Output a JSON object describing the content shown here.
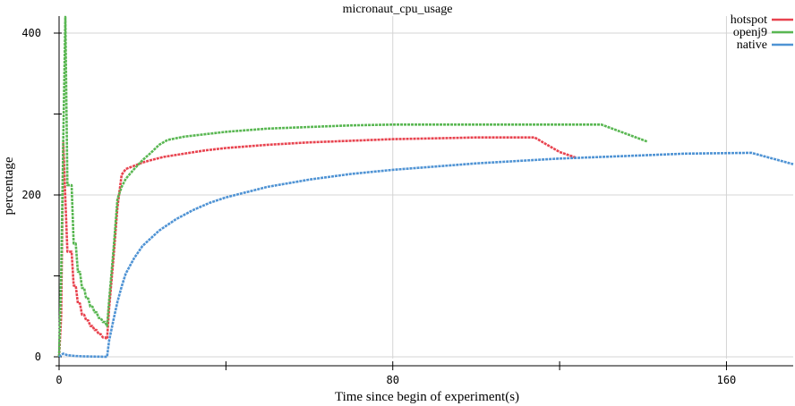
{
  "chart_data": {
    "type": "line",
    "title": "micronaut_cpu_usage",
    "xlabel": "Time since begin of experiment(s)",
    "ylabel": "percentage",
    "xlim": [
      0,
      176
    ],
    "ylim": [
      0,
      420
    ],
    "x_ticks": [
      0,
      80,
      160
    ],
    "y_ticks": [
      0,
      200,
      400
    ],
    "grid": true,
    "legend_position": "top-right",
    "series": [
      {
        "name": "hotspot",
        "color": "#e8434f",
        "points": [
          [
            0,
            0
          ],
          [
            0.5,
            50
          ],
          [
            1,
            265
          ],
          [
            1.5,
            195
          ],
          [
            2,
            130
          ],
          [
            2.5,
            130
          ],
          [
            3,
            130
          ],
          [
            3.5,
            88
          ],
          [
            4,
            88
          ],
          [
            4.5,
            66
          ],
          [
            5,
            66
          ],
          [
            5.5,
            52
          ],
          [
            6,
            52
          ],
          [
            6.5,
            45
          ],
          [
            7,
            45
          ],
          [
            7.5,
            38
          ],
          [
            8,
            38
          ],
          [
            8.5,
            33
          ],
          [
            9,
            33
          ],
          [
            9.5,
            28
          ],
          [
            10,
            28
          ],
          [
            10.5,
            24
          ],
          [
            11,
            24
          ],
          [
            11.5,
            22
          ],
          [
            12,
            60
          ],
          [
            13,
            120
          ],
          [
            14,
            185
          ],
          [
            15,
            225
          ],
          [
            16,
            232
          ],
          [
            18,
            236
          ],
          [
            20,
            240
          ],
          [
            22,
            243
          ],
          [
            25,
            247
          ],
          [
            30,
            251
          ],
          [
            35,
            255
          ],
          [
            40,
            258
          ],
          [
            50,
            262
          ],
          [
            60,
            265
          ],
          [
            70,
            267
          ],
          [
            80,
            269
          ],
          [
            90,
            270
          ],
          [
            100,
            271
          ],
          [
            114,
            271
          ],
          [
            120,
            253
          ],
          [
            124,
            246
          ]
        ]
      },
      {
        "name": "openj9",
        "color": "#59b752",
        "points": [
          [
            0,
            0
          ],
          [
            0.5,
            100
          ],
          [
            1,
            270
          ],
          [
            1.5,
            420
          ],
          [
            2,
            212
          ],
          [
            2.5,
            212
          ],
          [
            3,
            212
          ],
          [
            3.5,
            140
          ],
          [
            4,
            140
          ],
          [
            4.5,
            105
          ],
          [
            5,
            105
          ],
          [
            5.5,
            85
          ],
          [
            6,
            85
          ],
          [
            6.5,
            72
          ],
          [
            7,
            72
          ],
          [
            7.5,
            62
          ],
          [
            8,
            62
          ],
          [
            8.5,
            55
          ],
          [
            9,
            55
          ],
          [
            9.5,
            48
          ],
          [
            10,
            48
          ],
          [
            10.5,
            43
          ],
          [
            11,
            43
          ],
          [
            11.5,
            38
          ],
          [
            12,
            70
          ],
          [
            13,
            130
          ],
          [
            14,
            195
          ],
          [
            15,
            210
          ],
          [
            16,
            220
          ],
          [
            18,
            232
          ],
          [
            20,
            243
          ],
          [
            22,
            252
          ],
          [
            24,
            262
          ],
          [
            26,
            268
          ],
          [
            30,
            272
          ],
          [
            35,
            275
          ],
          [
            40,
            278
          ],
          [
            50,
            282
          ],
          [
            60,
            284
          ],
          [
            70,
            286
          ],
          [
            80,
            287
          ],
          [
            90,
            287
          ],
          [
            100,
            287
          ],
          [
            130,
            287
          ],
          [
            141,
            266
          ]
        ]
      },
      {
        "name": "native",
        "color": "#4f93d4",
        "points": [
          [
            0,
            0
          ],
          [
            1,
            4
          ],
          [
            2,
            2
          ],
          [
            4,
            1
          ],
          [
            6,
            0.5
          ],
          [
            11.5,
            0
          ],
          [
            12,
            20
          ],
          [
            13,
            45
          ],
          [
            14,
            68
          ],
          [
            15,
            87
          ],
          [
            16,
            103
          ],
          [
            18,
            122
          ],
          [
            20,
            137
          ],
          [
            24,
            156
          ],
          [
            28,
            170
          ],
          [
            32,
            181
          ],
          [
            36,
            190
          ],
          [
            40,
            197
          ],
          [
            50,
            210
          ],
          [
            60,
            219
          ],
          [
            70,
            226
          ],
          [
            80,
            231
          ],
          [
            90,
            235
          ],
          [
            100,
            239
          ],
          [
            110,
            242
          ],
          [
            120,
            245
          ],
          [
            130,
            247
          ],
          [
            140,
            249
          ],
          [
            150,
            251
          ],
          [
            166,
            252
          ],
          [
            176,
            238
          ]
        ]
      }
    ]
  }
}
